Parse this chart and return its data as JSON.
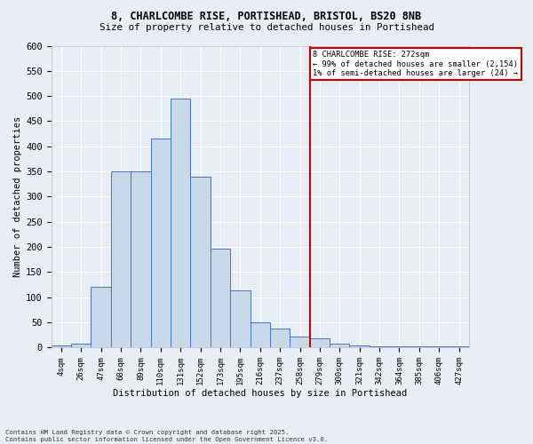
{
  "title_line1": "8, CHARLCOMBE RISE, PORTISHEAD, BRISTOL, BS20 8NB",
  "title_line2": "Size of property relative to detached houses in Portishead",
  "xlabel": "Distribution of detached houses by size in Portishead",
  "ylabel": "Number of detached properties",
  "bar_labels": [
    "4sqm",
    "26sqm",
    "47sqm",
    "68sqm",
    "89sqm",
    "110sqm",
    "131sqm",
    "152sqm",
    "173sqm",
    "195sqm",
    "216sqm",
    "237sqm",
    "258sqm",
    "279sqm",
    "300sqm",
    "321sqm",
    "342sqm",
    "364sqm",
    "385sqm",
    "406sqm",
    "427sqm"
  ],
  "bar_values": [
    5,
    8,
    120,
    350,
    350,
    415,
    495,
    340,
    197,
    113,
    50,
    38,
    22,
    18,
    8,
    5,
    2,
    3,
    2,
    2,
    2
  ],
  "bar_color": "#c8d8e8",
  "bar_edge_color": "#4472c4",
  "vline_color": "#cc0000",
  "annotation_title": "8 CHARLCOMBE RISE: 272sqm",
  "annotation_line1": "← 99% of detached houses are smaller (2,154)",
  "annotation_line2": "1% of semi-detached houses are larger (24) →",
  "annotation_box_color": "#cc0000",
  "annotation_text_color": "#000000",
  "annotation_bg": "#ffffff",
  "ylim": [
    0,
    600
  ],
  "yticks": [
    0,
    50,
    100,
    150,
    200,
    250,
    300,
    350,
    400,
    450,
    500,
    550,
    600
  ],
  "footer_line1": "Contains HM Land Registry data © Crown copyright and database right 2025.",
  "footer_line2": "Contains public sector information licensed under the Open Government Licence v3.0.",
  "bg_color": "#e8eef5",
  "grid_color": "#ffffff",
  "vline_index": 12.5
}
